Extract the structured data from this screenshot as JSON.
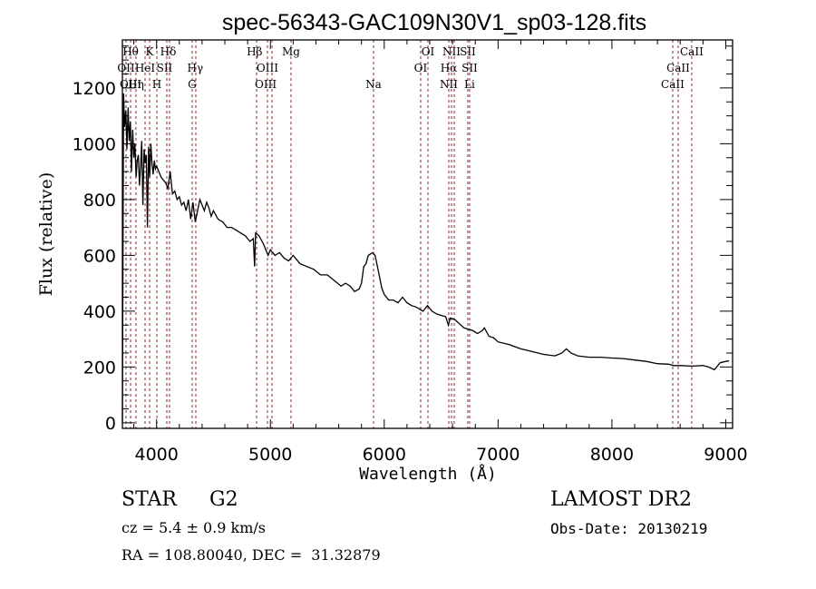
{
  "chart_data": {
    "type": "line",
    "title": "spec-56343-GAC109N30V1_sp03-128.fits",
    "xlabel": "Wavelength (Å)",
    "ylabel": "Flux (relative)",
    "xlim": [
      3700,
      9060
    ],
    "ylim": [
      -20,
      1372
    ],
    "xticks": [
      4000,
      5000,
      6000,
      7000,
      8000,
      9000
    ],
    "xtick_labels": [
      "4000",
      "5000",
      "6000",
      "7000",
      "8000",
      "9000"
    ],
    "yticks": [
      0,
      200,
      400,
      600,
      800,
      1000,
      1200
    ],
    "ytick_labels": [
      "0",
      "200",
      "400",
      "600",
      "800",
      "1000",
      "1200"
    ],
    "grid": false,
    "line_color": "#000000",
    "marker_line_color": "#8b2a2a",
    "series": [
      {
        "name": "flux",
        "x": [
          3700,
          3710,
          3720,
          3730,
          3740,
          3750,
          3760,
          3770,
          3780,
          3790,
          3800,
          3810,
          3820,
          3830,
          3840,
          3850,
          3860,
          3870,
          3880,
          3890,
          3900,
          3910,
          3920,
          3930,
          3940,
          3950,
          3960,
          3970,
          3980,
          3990,
          4000,
          4020,
          4040,
          4060,
          4080,
          4100,
          4120,
          4140,
          4160,
          4180,
          4200,
          4220,
          4240,
          4260,
          4280,
          4300,
          4320,
          4340,
          4360,
          4380,
          4400,
          4420,
          4440,
          4460,
          4480,
          4500,
          4540,
          4580,
          4620,
          4660,
          4700,
          4740,
          4780,
          4820,
          4850,
          4861,
          4870,
          4900,
          4940,
          4980,
          5000,
          5040,
          5080,
          5120,
          5160,
          5200,
          5260,
          5320,
          5380,
          5440,
          5500,
          5560,
          5620,
          5660,
          5700,
          5740,
          5780,
          5800,
          5820,
          5840,
          5860,
          5880,
          5900,
          5920,
          5940,
          5960,
          5980,
          6000,
          6040,
          6080,
          6120,
          6160,
          6200,
          6240,
          6280,
          6300,
          6340,
          6380,
          6420,
          6460,
          6500,
          6540,
          6563,
          6580,
          6620,
          6660,
          6700,
          6740,
          6780,
          6820,
          6860,
          6880,
          6920,
          6960,
          7000,
          7100,
          7200,
          7300,
          7400,
          7500,
          7560,
          7600,
          7640,
          7700,
          7800,
          7900,
          8000,
          8100,
          8200,
          8300,
          8400,
          8500,
          8540,
          8600,
          8700,
          8800,
          8850,
          8900,
          8950,
          9000,
          9030
        ],
        "values": [
          0,
          1180,
          1060,
          1120,
          980,
          1130,
          1010,
          1080,
          900,
          1050,
          950,
          1000,
          880,
          940,
          960,
          850,
          920,
          1010,
          780,
          980,
          930,
          960,
          700,
          990,
          880,
          1000,
          930,
          890,
          940,
          910,
          920,
          900,
          880,
          870,
          860,
          840,
          900,
          820,
          830,
          800,
          810,
          780,
          790,
          760,
          800,
          730,
          790,
          720,
          760,
          800,
          780,
          760,
          790,
          770,
          740,
          760,
          730,
          720,
          700,
          700,
          690,
          680,
          670,
          650,
          660,
          560,
          680,
          670,
          640,
          600,
          620,
          600,
          610,
          590,
          580,
          600,
          570,
          560,
          550,
          530,
          530,
          510,
          490,
          500,
          490,
          470,
          480,
          500,
          560,
          570,
          600,
          605,
          610,
          600,
          560,
          520,
          480,
          460,
          440,
          440,
          430,
          450,
          430,
          420,
          415,
          410,
          400,
          420,
          400,
          390,
          385,
          380,
          350,
          375,
          370,
          355,
          340,
          335,
          330,
          320,
          330,
          340,
          310,
          305,
          290,
          280,
          265,
          255,
          245,
          240,
          250,
          265,
          250,
          240,
          235,
          235,
          232,
          230,
          225,
          220,
          212,
          210,
          205,
          205,
          203,
          205,
          200,
          190,
          215,
          220,
          222
        ]
      }
    ],
    "line_markers": [
      {
        "label": "OII",
        "wavelength": 3732,
        "row": 1
      },
      {
        "label": "Hθ",
        "wavelength": 3772,
        "row": 0
      },
      {
        "label": "OIII",
        "wavelength": 3772,
        "row": 2
      },
      {
        "label": "Hη",
        "wavelength": 3819,
        "row": 2
      },
      {
        "label": "HeI",
        "wavelength": 3899,
        "row": 1
      },
      {
        "label": "K",
        "wavelength": 3939,
        "row": 0
      },
      {
        "label": "H",
        "wavelength": 4003,
        "row": 2
      },
      {
        "label": "SII",
        "wavelength": 4070,
        "row": 1
      },
      {
        "label": "Hδ",
        "wavelength": 4102,
        "row": 0
      },
      {
        "label": "Hγ",
        "wavelength": 4340,
        "row": 1
      },
      {
        "label": "G",
        "wavelength": 4313,
        "row": 2
      },
      {
        "label": "Hβ",
        "wavelength": 4861,
        "row": 0
      },
      {
        "label": "OIII",
        "wavelength": 4974,
        "row": 1
      },
      {
        "label": "OIII",
        "wavelength": 4959,
        "row": 2
      },
      {
        "label": "Mg",
        "wavelength": 5181,
        "row": 0
      },
      {
        "label": "Na",
        "wavelength": 5906,
        "row": 2
      },
      {
        "label": "OI",
        "wavelength": 6384,
        "row": 0
      },
      {
        "label": "OI",
        "wavelength": 6320,
        "row": 1
      },
      {
        "label": "NII",
        "wavelength": 6591,
        "row": 0
      },
      {
        "label": "Hα",
        "wavelength": 6567,
        "row": 1
      },
      {
        "label": "NII",
        "wavelength": 6567,
        "row": 2
      },
      {
        "label": "SII",
        "wavelength": 6734,
        "row": 0
      },
      {
        "label": "SII",
        "wavelength": 6750,
        "row": 1
      },
      {
        "label": "Li",
        "wavelength": 6750,
        "row": 2
      },
      {
        "label": "CaII",
        "wavelength": 8701,
        "row": 0
      },
      {
        "label": "CaII",
        "wavelength": 8582,
        "row": 1
      },
      {
        "label": "CaII",
        "wavelength": 8534,
        "row": 2
      }
    ],
    "marker_wavelengths": [
      3732,
      3772,
      3819,
      3899,
      3939,
      4003,
      4090,
      4114,
      4313,
      4345,
      4879,
      4974,
      5014,
      5181,
      5906,
      6320,
      6384,
      6567,
      6591,
      6615,
      6734,
      6750,
      8534,
      8582,
      8701
    ]
  },
  "info": {
    "object_class": "STAR",
    "subclass": "G2",
    "cz": "cz = 5.4 ± 0.9 km/s",
    "coords": "RA = 108.80040, DEC =  31.32879",
    "survey": "LAMOST DR2",
    "obs_date": "Obs-Date: 20130219"
  }
}
